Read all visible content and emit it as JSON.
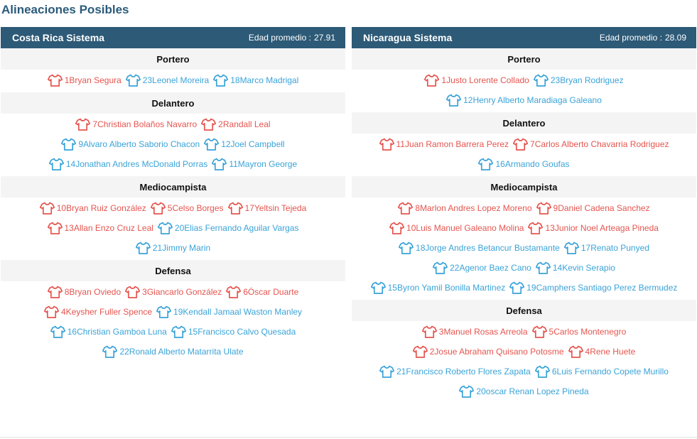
{
  "page": {
    "title": "Alineaciones Posibles"
  },
  "colors": {
    "header_bg": "#2d5a77",
    "starter": "#e5554f",
    "substitute": "#3aa3d8",
    "position_bg": "#f4f4f4"
  },
  "teams": [
    {
      "name": "Costa Rica Sistema",
      "age_label": "Edad promedio :",
      "age_value": "27.91",
      "positions": [
        {
          "label": "Portero",
          "rows": [
            [
              {
                "num": "1",
                "name": "Bryan Segura",
                "color": "red"
              },
              {
                "num": "23",
                "name": "Leonel Moreira",
                "color": "blue"
              },
              {
                "num": "18",
                "name": "Marco Madrigal",
                "color": "blue"
              }
            ]
          ]
        },
        {
          "label": "Delantero",
          "rows": [
            [
              {
                "num": "7",
                "name": "Christian Bolaños Navarro",
                "color": "red"
              },
              {
                "num": "2",
                "name": "Randall Leal",
                "color": "red"
              }
            ],
            [
              {
                "num": "9",
                "name": "Alvaro Alberto Saborio Chacon",
                "color": "blue"
              },
              {
                "num": "12",
                "name": "Joel Campbell",
                "color": "blue"
              }
            ],
            [
              {
                "num": "14",
                "name": "Jonathan Andres McDonald Porras",
                "color": "blue"
              },
              {
                "num": "11",
                "name": "Mayron George",
                "color": "blue"
              }
            ]
          ]
        },
        {
          "label": "Mediocampista",
          "rows": [
            [
              {
                "num": "10",
                "name": "Bryan Ruiz González",
                "color": "red"
              },
              {
                "num": "5",
                "name": "Celso Borges",
                "color": "red"
              },
              {
                "num": "17",
                "name": "Yeltsin Tejeda",
                "color": "red"
              }
            ],
            [
              {
                "num": "13",
                "name": "Allan Enzo Cruz Leal",
                "color": "red"
              },
              {
                "num": "20",
                "name": "Elias Fernando Aguilar Vargas",
                "color": "blue"
              }
            ],
            [
              {
                "num": "21",
                "name": "Jimmy Marin",
                "color": "blue"
              }
            ]
          ]
        },
        {
          "label": "Defensa",
          "rows": [
            [
              {
                "num": "8",
                "name": "Bryan Oviedo",
                "color": "red"
              },
              {
                "num": "3",
                "name": "Giancarlo González",
                "color": "red"
              },
              {
                "num": "6",
                "name": "Óscar Duarte",
                "color": "red"
              }
            ],
            [
              {
                "num": "4",
                "name": "Keysher Fuller Spence",
                "color": "red"
              },
              {
                "num": "19",
                "name": "Kendall Jamaal Waston Manley",
                "color": "blue"
              }
            ],
            [
              {
                "num": "16",
                "name": "Christian Gamboa Luna",
                "color": "blue"
              },
              {
                "num": "15",
                "name": "Francisco Calvo Quesada",
                "color": "blue"
              }
            ],
            [
              {
                "num": "22",
                "name": "Ronald Alberto Matarrita Ulate",
                "color": "blue"
              }
            ]
          ]
        }
      ]
    },
    {
      "name": "Nicaragua Sistema",
      "age_label": "Edad promedio :",
      "age_value": "28.09",
      "positions": [
        {
          "label": "Portero",
          "rows": [
            [
              {
                "num": "1",
                "name": "Justo Lorente Collado",
                "color": "red"
              },
              {
                "num": "23",
                "name": "Bryan Rodriguez",
                "color": "blue"
              }
            ],
            [
              {
                "num": "12",
                "name": "Henry Alberto Maradiaga Galeano",
                "color": "blue"
              }
            ]
          ]
        },
        {
          "label": "Delantero",
          "rows": [
            [
              {
                "num": "11",
                "name": "Juan Ramon Barrera Perez",
                "color": "red"
              },
              {
                "num": "7",
                "name": "Carlos Alberto Chavarria Rodriguez",
                "color": "red"
              }
            ],
            [
              {
                "num": "16",
                "name": "Armando Goufas",
                "color": "blue"
              }
            ]
          ]
        },
        {
          "label": "Mediocampista",
          "rows": [
            [
              {
                "num": "8",
                "name": "Marlon Andres Lopez Moreno",
                "color": "red"
              },
              {
                "num": "9",
                "name": "Daniel Cadena Sanchez",
                "color": "red"
              }
            ],
            [
              {
                "num": "10",
                "name": "Luis Manuel Galeano Molina",
                "color": "red"
              },
              {
                "num": "13",
                "name": "Junior Noel Arteaga Pineda",
                "color": "red"
              }
            ],
            [
              {
                "num": "18",
                "name": "Jorge Andres Betancur Bustamante",
                "color": "blue"
              },
              {
                "num": "17",
                "name": "Renato Punyed",
                "color": "blue"
              }
            ],
            [
              {
                "num": "22",
                "name": "Agenor Baez Cano",
                "color": "blue"
              },
              {
                "num": "14",
                "name": "Kevin Serapio",
                "color": "blue"
              }
            ],
            [
              {
                "num": "15",
                "name": "Byron Yamil Bonilla Martinez",
                "color": "blue"
              },
              {
                "num": "19",
                "name": "Camphers Santiago Perez Bermudez",
                "color": "blue"
              }
            ]
          ]
        },
        {
          "label": "Defensa",
          "rows": [
            [
              {
                "num": "3",
                "name": "Manuel Rosas Arreola",
                "color": "red"
              },
              {
                "num": "5",
                "name": "Carlos Montenegro",
                "color": "red"
              }
            ],
            [
              {
                "num": "2",
                "name": "Josue Abraham Quisano Potosme",
                "color": "red"
              },
              {
                "num": "4",
                "name": "Rene Huete",
                "color": "red"
              }
            ],
            [
              {
                "num": "21",
                "name": "Francisco Roberto Flores Zapata",
                "color": "blue"
              },
              {
                "num": "6",
                "name": "Luis Fernando Copete Murillo",
                "color": "blue"
              }
            ],
            [
              {
                "num": "20",
                "name": "oscar Renan Lopez Pineda",
                "color": "blue"
              }
            ]
          ]
        }
      ]
    }
  ]
}
